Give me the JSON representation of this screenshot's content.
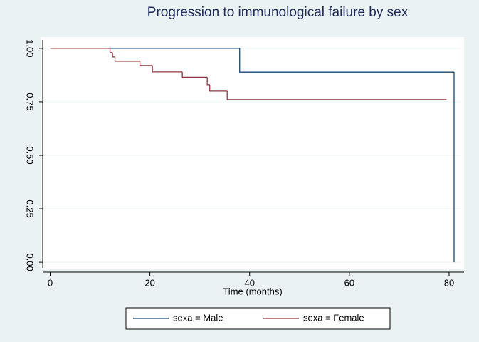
{
  "chart_data": {
    "type": "step",
    "title": "Progression to immunological failure by sex",
    "x_label": "Time (months)",
    "xlim": [
      -1.5,
      83
    ],
    "xticks": [
      0,
      20,
      40,
      60,
      80
    ],
    "ylim": [
      -0.0263,
      1.0395
    ],
    "yticks": [
      {
        "value": 0,
        "label": "0.00"
      },
      {
        "value": 0.25,
        "label": "0.25"
      },
      {
        "value": 0.5,
        "label": "0.50"
      },
      {
        "value": 0.75,
        "label": "0.75"
      },
      {
        "value": 1,
        "label": "1.00"
      }
    ],
    "grid": true,
    "legend": "bottom",
    "series": [
      {
        "name": "sexa = Male",
        "color": "#1a476f",
        "x": [
          0,
          38,
          81
        ],
        "values": [
          1,
          0.889,
          0
        ]
      },
      {
        "name": "sexa = Female",
        "color": "#90353b",
        "x": [
          0,
          12,
          12.5,
          13,
          18,
          20.5,
          26.5,
          31.5,
          32,
          35.5,
          79.5
        ],
        "values": [
          1,
          0.98,
          0.96,
          0.94,
          0.92,
          0.89,
          0.865,
          0.83,
          0.8,
          0.76,
          0.76
        ]
      }
    ]
  }
}
